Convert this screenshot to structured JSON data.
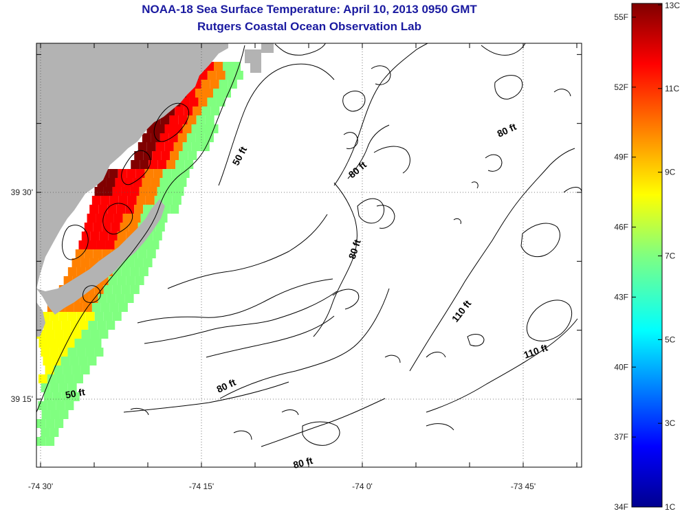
{
  "title": "NOAA-18 Sea Surface Temperature:  April 10, 2013 0950 GMT",
  "subtitle": "Rutgers Coastal Ocean Observation Lab",
  "axes": {
    "lon_ticks": [
      {
        "label": "-74 30'",
        "lon": -74.5
      },
      {
        "label": "-74 15'",
        "lon": -74.25
      },
      {
        "label": "-74 0'",
        "lon": -74.0
      },
      {
        "label": "-73 45'",
        "lon": -73.75
      }
    ],
    "lat_ticks": [
      {
        "label": "39 30'",
        "lat": 39.5
      },
      {
        "label": "39 15'",
        "lat": 39.25
      }
    ]
  },
  "contour_labels": [
    "50 ft",
    "80 ft",
    "80 ft",
    "80 ft",
    "80 ft",
    "110 ft",
    "110 ft",
    "80 ft",
    "50 ft"
  ],
  "colorbar": {
    "fahrenheit_labels": [
      "55F",
      "52F",
      "49F",
      "46F",
      "43F",
      "40F",
      "37F",
      "34F"
    ],
    "celsius_labels": [
      "13C",
      "11C",
      "9C",
      "7C",
      "5C",
      "3C",
      "1C"
    ],
    "range_c": [
      1,
      13
    ]
  },
  "colors": {
    "land": "#b3b3b3",
    "title": "#1a1aa0",
    "sst_scale": [
      "#00008f",
      "#0000ff",
      "#0080ff",
      "#00ffff",
      "#80ff80",
      "#ffff00",
      "#ff8000",
      "#ff0000",
      "#800000"
    ]
  }
}
